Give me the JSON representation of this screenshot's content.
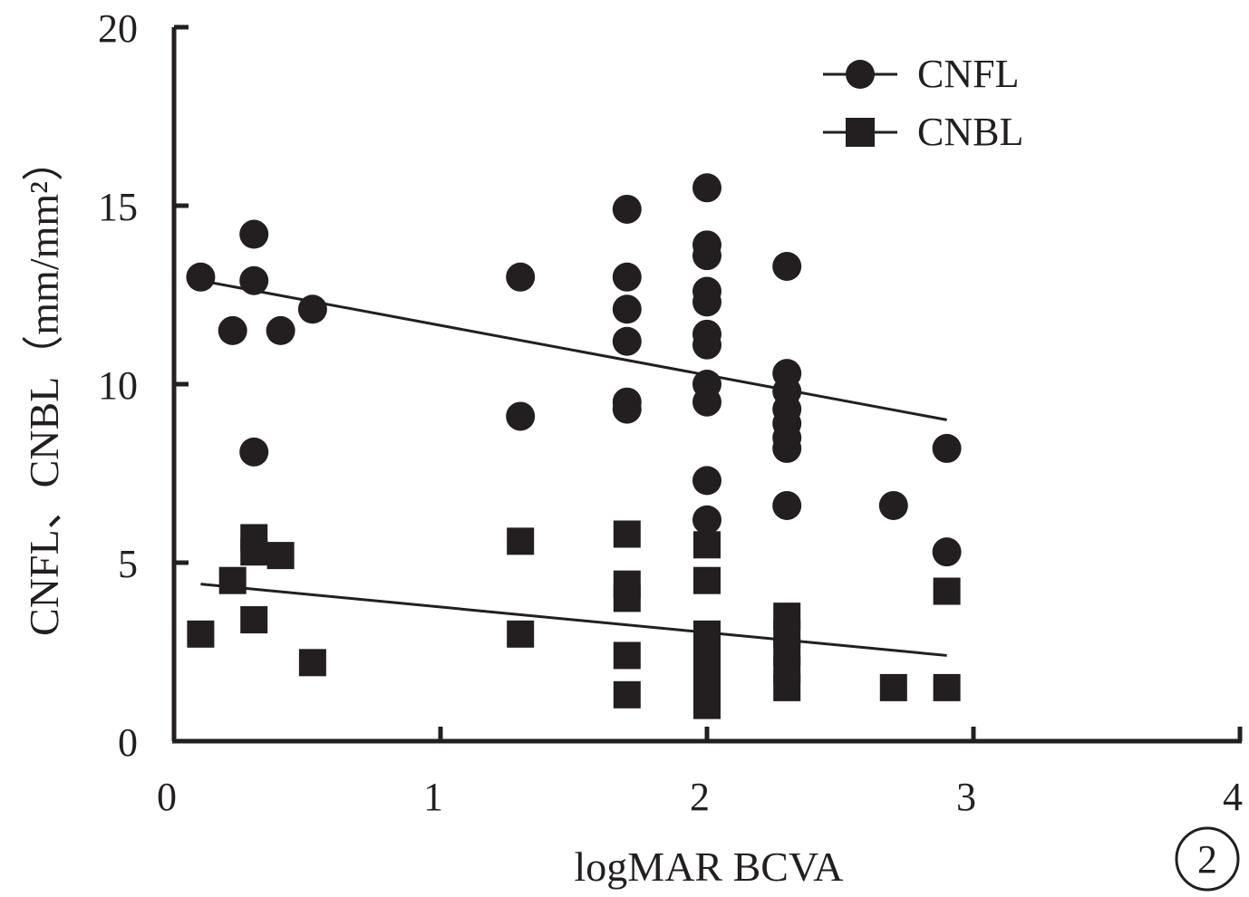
{
  "chart_data": {
    "type": "scatter",
    "xlabel": "logMAR BCVA",
    "ylabel": "CNFL、CNBL（mm/mm²）",
    "xlim": [
      0,
      4
    ],
    "ylim": [
      0,
      20
    ],
    "xticks": [
      0,
      1,
      2,
      3,
      4
    ],
    "yticks": [
      0,
      5,
      10,
      15,
      20
    ],
    "legend_position": "top-right",
    "panel_label": "2",
    "series": [
      {
        "name": "CNFL",
        "marker": "circle",
        "color": "#231f20",
        "points": [
          [
            0.1,
            13.0
          ],
          [
            0.22,
            11.5
          ],
          [
            0.3,
            14.2
          ],
          [
            0.3,
            12.9
          ],
          [
            0.3,
            8.1
          ],
          [
            0.4,
            11.5
          ],
          [
            0.52,
            12.1
          ],
          [
            1.3,
            13.0
          ],
          [
            1.3,
            9.1
          ],
          [
            1.7,
            14.9
          ],
          [
            1.7,
            13.0
          ],
          [
            1.7,
            12.1
          ],
          [
            1.7,
            11.2
          ],
          [
            1.7,
            9.5
          ],
          [
            1.7,
            9.3
          ],
          [
            2.0,
            15.5
          ],
          [
            2.0,
            13.9
          ],
          [
            2.0,
            13.6
          ],
          [
            2.0,
            12.6
          ],
          [
            2.0,
            12.3
          ],
          [
            2.0,
            11.4
          ],
          [
            2.0,
            11.1
          ],
          [
            2.0,
            10.0
          ],
          [
            2.0,
            9.5
          ],
          [
            2.0,
            7.3
          ],
          [
            2.0,
            6.2
          ],
          [
            2.3,
            13.3
          ],
          [
            2.3,
            10.3
          ],
          [
            2.3,
            9.8
          ],
          [
            2.3,
            9.3
          ],
          [
            2.3,
            8.9
          ],
          [
            2.3,
            8.5
          ],
          [
            2.3,
            8.2
          ],
          [
            2.3,
            6.6
          ],
          [
            2.7,
            6.6
          ],
          [
            2.9,
            8.2
          ],
          [
            2.9,
            5.3
          ]
        ],
        "trend": [
          [
            0.1,
            12.9
          ],
          [
            2.9,
            9.0
          ]
        ]
      },
      {
        "name": "CNBL",
        "marker": "square",
        "color": "#231f20",
        "points": [
          [
            0.1,
            3.0
          ],
          [
            0.22,
            4.5
          ],
          [
            0.3,
            5.7
          ],
          [
            0.3,
            5.3
          ],
          [
            0.3,
            3.4
          ],
          [
            0.4,
            5.2
          ],
          [
            0.52,
            2.2
          ],
          [
            1.3,
            5.6
          ],
          [
            1.3,
            3.0
          ],
          [
            1.7,
            5.8
          ],
          [
            1.7,
            4.4
          ],
          [
            1.7,
            4.0
          ],
          [
            1.7,
            2.4
          ],
          [
            1.7,
            1.3
          ],
          [
            2.0,
            5.5
          ],
          [
            2.0,
            4.5
          ],
          [
            2.0,
            3.0
          ],
          [
            2.0,
            2.6
          ],
          [
            2.0,
            2.2
          ],
          [
            2.0,
            1.8
          ],
          [
            2.0,
            1.4
          ],
          [
            2.0,
            1.0
          ],
          [
            2.3,
            3.5
          ],
          [
            2.3,
            3.0
          ],
          [
            2.3,
            2.5
          ],
          [
            2.3,
            2.0
          ],
          [
            2.3,
            1.5
          ],
          [
            2.7,
            1.5
          ],
          [
            2.9,
            4.2
          ],
          [
            2.9,
            1.5
          ]
        ],
        "trend": [
          [
            0.1,
            4.4
          ],
          [
            2.9,
            2.4
          ]
        ]
      }
    ]
  }
}
